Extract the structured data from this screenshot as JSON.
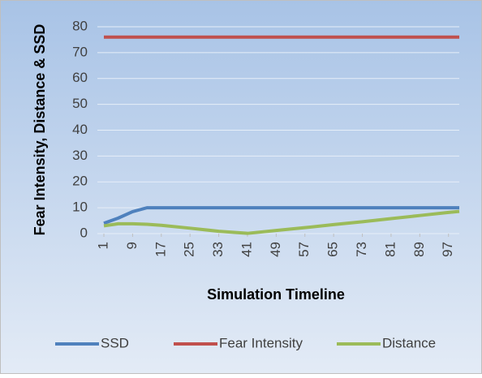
{
  "chart_data": {
    "type": "line",
    "x_label": "Simulation Timeline",
    "y_label": "Fear Intensity, Distance & SSD",
    "x": [
      1,
      5,
      9,
      13,
      17,
      25,
      33,
      41,
      49,
      57,
      65,
      73,
      81,
      89,
      97,
      100
    ],
    "xlim": [
      1,
      100
    ],
    "xticks": [
      1,
      9,
      17,
      25,
      33,
      41,
      49,
      57,
      65,
      73,
      81,
      89,
      97
    ],
    "ylim": [
      0,
      80
    ],
    "yticks": [
      0,
      10,
      20,
      30,
      40,
      50,
      60,
      70,
      80
    ],
    "grid": true,
    "legend": "bottom",
    "series": [
      {
        "name": "SSD",
        "color": "#4f81bd",
        "values": [
          4,
          6,
          8.5,
          10,
          10,
          10,
          10,
          10,
          10,
          10,
          10,
          10,
          10,
          10,
          10,
          10
        ]
      },
      {
        "name": "Fear Intensity",
        "color": "#c0504d",
        "values": [
          76,
          76,
          76,
          76,
          76,
          76,
          76,
          76,
          76,
          76,
          76,
          76,
          76,
          76,
          76,
          76
        ]
      },
      {
        "name": "Distance",
        "color": "#9bbb59",
        "values": [
          3,
          3.8,
          3.8,
          3.6,
          3.2,
          2.1,
          0.9,
          0.1,
          1.2,
          2.3,
          3.5,
          4.6,
          5.8,
          7,
          8.2,
          8.6
        ]
      }
    ]
  }
}
